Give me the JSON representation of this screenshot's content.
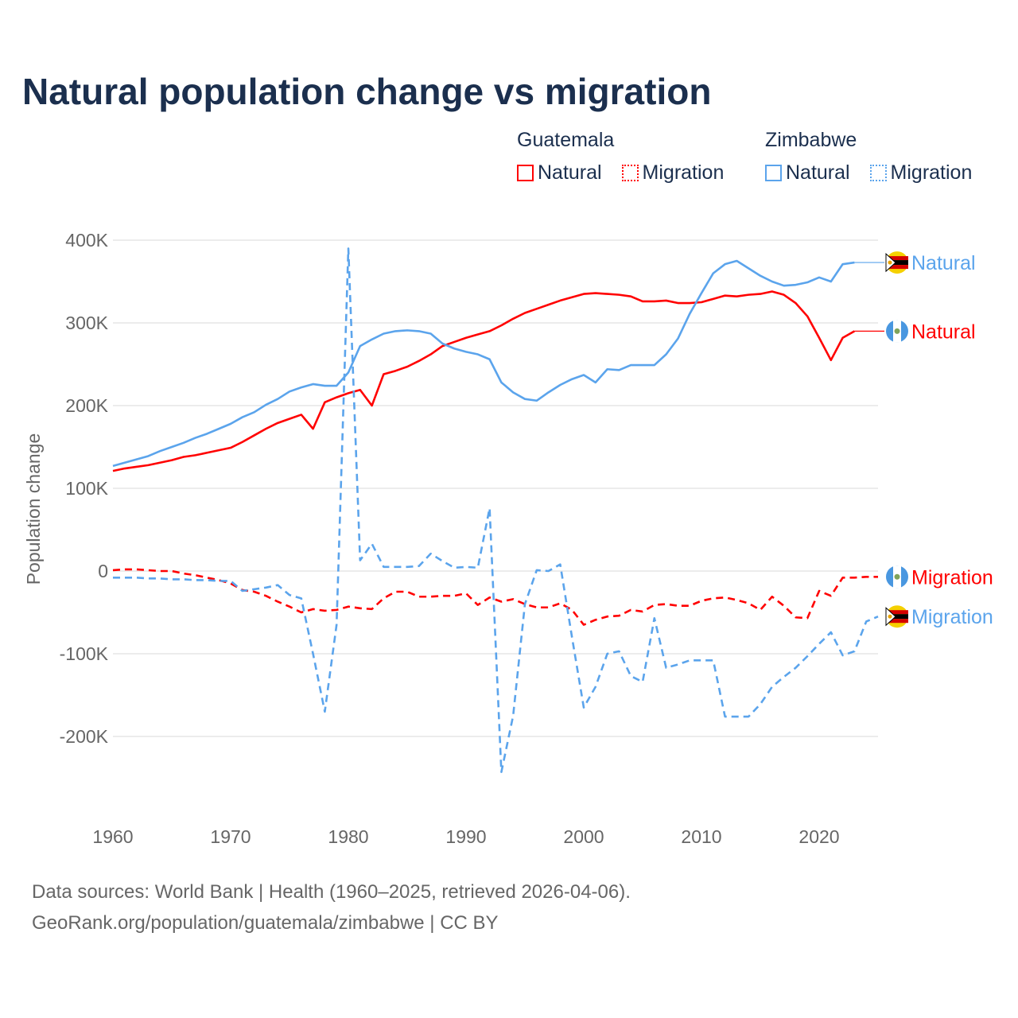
{
  "title": "Natural population change vs migration",
  "legend": [
    {
      "group": "Guatemala",
      "items": [
        {
          "label": "Natural",
          "color": "#ff0000",
          "style": "solid"
        },
        {
          "label": "Migration",
          "color": "#ff0000",
          "style": "dotted"
        }
      ]
    },
    {
      "group": "Zimbabwe",
      "items": [
        {
          "label": "Natural",
          "color": "#5ba4ec",
          "style": "solid"
        },
        {
          "label": "Migration",
          "color": "#5ba4ec",
          "style": "dotted"
        }
      ]
    }
  ],
  "footer": {
    "line1": "Data sources: World Bank | Health (1960–2025, retrieved 2026-04-06).",
    "line2": "GeoRank.org/population/guatemala/zimbabwe | CC BY"
  },
  "chart_data": {
    "type": "line",
    "title": "Natural population change vs migration",
    "xlabel": "",
    "ylabel": "Population change",
    "xlim": [
      1960,
      2025
    ],
    "ylim": [
      -280000,
      410000
    ],
    "x_ticks": [
      1960,
      1970,
      1980,
      1990,
      2000,
      2010,
      2020
    ],
    "x_tick_labels": [
      "1960",
      "1970",
      "1980",
      "1990",
      "2000",
      "2010",
      "2020"
    ],
    "y_ticks": [
      400000,
      300000,
      200000,
      100000,
      0,
      -100000,
      -200000
    ],
    "y_tick_labels": [
      "400K",
      "300K",
      "200K",
      "100K",
      "0",
      "-100K",
      "-200K"
    ],
    "grid": true,
    "series": [
      {
        "name": "Guatemala Natural",
        "end_label": "Natural",
        "flag": "guatemala-flag",
        "color": "#ff0000",
        "dash": false,
        "start": 1960,
        "values": [
          121000,
          124000,
          126000,
          128000,
          131000,
          134000,
          138000,
          140000,
          143000,
          146000,
          149000,
          156000,
          164000,
          172000,
          179000,
          184000,
          189000,
          172000,
          204000,
          210000,
          215000,
          219000,
          200000,
          238000,
          242000,
          247000,
          254000,
          262000,
          272000,
          277000,
          282000,
          286000,
          290000,
          297000,
          305000,
          312000,
          317000,
          322000,
          327000,
          331000,
          335000,
          336000,
          335000,
          334000,
          332000,
          326000,
          326000,
          327000,
          324000,
          324000,
          325000,
          329000,
          333000,
          332000,
          334000,
          335000,
          338000,
          334000,
          324000,
          308000,
          282000,
          255000,
          282000,
          290000
        ]
      },
      {
        "name": "Guatemala Migration",
        "end_label": "Migration",
        "flag": "guatemala-flag",
        "color": "#ff0000",
        "dash": true,
        "start": 1960,
        "values": [
          1000,
          2000,
          2000,
          1000,
          0,
          0,
          -3000,
          -5000,
          -8000,
          -11000,
          -15000,
          -23000,
          -25000,
          -30000,
          -37000,
          -43000,
          -50000,
          -46000,
          -48000,
          -47000,
          -43000,
          -45000,
          -46000,
          -33000,
          -25000,
          -25000,
          -31000,
          -31000,
          -30000,
          -30000,
          -27000,
          -41000,
          -32000,
          -37000,
          -34000,
          -40000,
          -44000,
          -44000,
          -39000,
          -47000,
          -65000,
          -59000,
          -55000,
          -54000,
          -47000,
          -49000,
          -41000,
          -40000,
          -42000,
          -42000,
          -36000,
          -33000,
          -32000,
          -35000,
          -39000,
          -47000,
          -31000,
          -42000,
          -56000,
          -57000,
          -24000,
          -30000,
          -8000,
          -8000,
          -7000,
          -7000
        ]
      },
      {
        "name": "Zimbabwe Natural",
        "end_label": "Natural",
        "flag": "zimbabwe-flag",
        "color": "#5ba4ec",
        "dash": false,
        "start": 1960,
        "values": [
          127000,
          131000,
          135000,
          139000,
          145000,
          150000,
          155000,
          161000,
          166000,
          172000,
          178000,
          186000,
          192000,
          201000,
          208000,
          217000,
          222000,
          226000,
          224000,
          224000,
          240000,
          272000,
          280000,
          287000,
          290000,
          291000,
          290000,
          287000,
          275000,
          269000,
          265000,
          262000,
          256000,
          228000,
          216000,
          208000,
          206000,
          216000,
          225000,
          232000,
          237000,
          228000,
          244000,
          243000,
          249000,
          249000,
          249000,
          262000,
          281000,
          311000,
          336000,
          360000,
          371000,
          375000,
          366000,
          357000,
          350000,
          345000,
          346000,
          349000,
          355000,
          350000,
          371000,
          373000
        ]
      },
      {
        "name": "Zimbabwe Migration",
        "end_label": "Migration",
        "flag": "zimbabwe-flag",
        "color": "#5ba4ec",
        "dash": true,
        "start": 1960,
        "values": [
          -8000,
          -8000,
          -8000,
          -9000,
          -9000,
          -10000,
          -10000,
          -11000,
          -11000,
          -12000,
          -12000,
          -24000,
          -22000,
          -20000,
          -17000,
          -29000,
          -33000,
          -100000,
          -170000,
          -65000,
          390000,
          13000,
          33000,
          5000,
          5000,
          5000,
          6000,
          21000,
          12000,
          4000,
          5000,
          4000,
          76000,
          -243000,
          -175000,
          -40000,
          1000,
          0,
          8000,
          -80000,
          -165000,
          -140000,
          -100000,
          -97000,
          -127000,
          -134000,
          -57000,
          -117000,
          -113000,
          -108000,
          -108000,
          -108000,
          -176000,
          -176000,
          -176000,
          -161000,
          -140000,
          -128000,
          -117000,
          -103000,
          -88000,
          -74000,
          -102000,
          -97000,
          -61000,
          -55000
        ]
      }
    ]
  }
}
